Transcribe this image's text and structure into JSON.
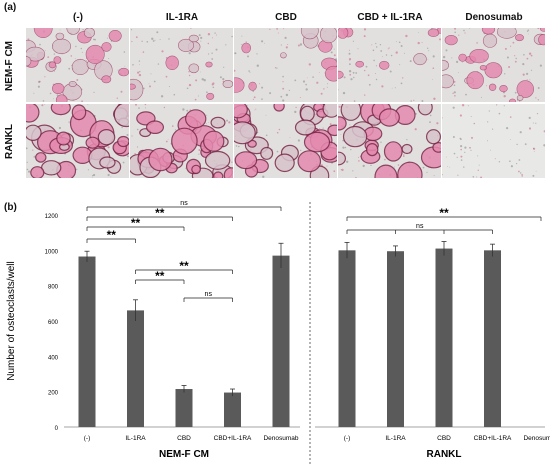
{
  "panel_a": {
    "label": "(a)",
    "columns": [
      "(-)",
      "IL-1RA",
      "CBD",
      "CBD + IL-1RA",
      "Denosumab"
    ],
    "rows": [
      "NEM-F CM",
      "RANKL"
    ]
  },
  "panel_b": {
    "label": "(b)"
  },
  "chart_data": {
    "type": "bar",
    "ylabel": "Number of osteoclasts/well",
    "ylim": [
      0,
      1200
    ],
    "yticks": [
      0,
      200,
      400,
      600,
      800,
      1000,
      1200
    ],
    "grid": false,
    "groups": [
      {
        "name": "NEM-F CM",
        "categories": [
          "(-)",
          "IL-1RA",
          "CBD",
          "CBD+IL-1RA",
          "Denosumab"
        ],
        "values": [
          965,
          660,
          215,
          195,
          970
        ],
        "errors": [
          30,
          60,
          20,
          20,
          70
        ]
      },
      {
        "name": "RANKL",
        "categories": [
          "(-)",
          "IL-1RA",
          "CBD",
          "CBD+IL-1RA",
          "Denosumab"
        ],
        "values": [
          1000,
          995,
          1010,
          1000,
          0
        ],
        "errors": [
          45,
          30,
          40,
          35,
          0
        ]
      }
    ],
    "annotations": [
      {
        "group": 0,
        "from": 0,
        "to": 4,
        "text": "ns"
      },
      {
        "group": 0,
        "from": 0,
        "to": 3,
        "text": "**"
      },
      {
        "group": 0,
        "from": 0,
        "to": 2,
        "text": "**"
      },
      {
        "group": 0,
        "from": 0,
        "to": 1,
        "text": "**"
      },
      {
        "group": 0,
        "from": 1,
        "to": 3,
        "text": "**"
      },
      {
        "group": 0,
        "from": 1,
        "to": 2,
        "text": "**"
      },
      {
        "group": 0,
        "from": 2,
        "to": 3,
        "text": "ns"
      },
      {
        "group": 1,
        "from": 0,
        "to": 4,
        "text": "**"
      },
      {
        "group": 1,
        "from": 0,
        "to": [
          1,
          2,
          3
        ],
        "text": "ns"
      }
    ],
    "colors": {
      "bar": "#5a5a5a",
      "error": "#333333",
      "axis": "#888888"
    }
  }
}
